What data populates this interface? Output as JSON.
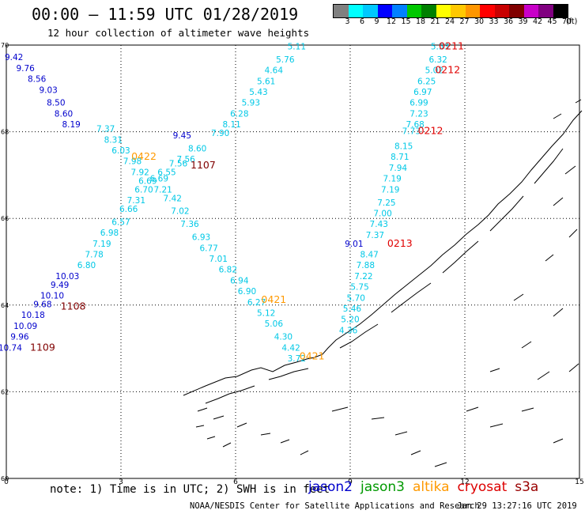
{
  "header": {
    "title": "00:00 – 11:59 UTC 01/28/2019",
    "subtitle": "12 hour collection of altimeter wave heights"
  },
  "colorbar": {
    "colors": [
      "#808080",
      "#00ffff",
      "#00c8ff",
      "#0000ff",
      "#0080ff",
      "#00c800",
      "#008000",
      "#ffff00",
      "#ffc800",
      "#ff9600",
      "#ff0000",
      "#c80000",
      "#800000",
      "#c800c8",
      "#800080",
      "#000000"
    ],
    "labels": [
      "3",
      "6",
      "9",
      "12",
      "15",
      "18",
      "21",
      "24",
      "27",
      "30",
      "33",
      "36",
      "39",
      "42",
      "45",
      "70"
    ],
    "unit": "(ft)"
  },
  "map": {
    "x_ticks": [
      "0",
      "3",
      "6",
      "9",
      "12",
      "15"
    ],
    "y_ticks": [
      "60",
      "62",
      "64",
      "66",
      "68",
      "70"
    ],
    "lon_range": [
      0,
      15
    ],
    "lat_range": [
      60,
      70
    ]
  },
  "tracks": [
    {
      "name": "cyan-sw-track",
      "color": "#00c8e6",
      "points": [
        {
          "lon": 7.6,
          "lat": 69.9,
          "v": "5.11"
        },
        {
          "lon": 7.3,
          "lat": 69.6,
          "v": "5.76"
        },
        {
          "lon": 7.0,
          "lat": 69.35,
          "v": "4.64"
        },
        {
          "lon": 6.8,
          "lat": 69.1,
          "v": "5.61"
        },
        {
          "lon": 6.6,
          "lat": 68.85,
          "v": "5.43"
        },
        {
          "lon": 6.4,
          "lat": 68.6,
          "v": "5.93"
        },
        {
          "lon": 6.1,
          "lat": 68.35,
          "v": "6.28"
        },
        {
          "lon": 5.9,
          "lat": 68.1,
          "v": "8.11"
        },
        {
          "lon": 5.6,
          "lat": 67.9,
          "v": "7.90"
        },
        {
          "lon": 5.0,
          "lat": 67.55,
          "v": "8.60"
        },
        {
          "lon": 4.7,
          "lat": 67.3,
          "v": "7.56"
        },
        {
          "lon": 4.5,
          "lat": 67.2,
          "v": "7.56"
        },
        {
          "lon": 4.2,
          "lat": 67.0,
          "v": "6.55"
        },
        {
          "lon": 4.0,
          "lat": 66.85,
          "v": "6.69"
        },
        {
          "lon": 4.1,
          "lat": 66.6,
          "v": "7.21"
        },
        {
          "lon": 4.35,
          "lat": 66.4,
          "v": "7.42"
        },
        {
          "lon": 4.55,
          "lat": 66.1,
          "v": "7.02"
        },
        {
          "lon": 4.8,
          "lat": 65.8,
          "v": "7.36"
        },
        {
          "lon": 5.1,
          "lat": 65.5,
          "v": "6.93"
        },
        {
          "lon": 5.3,
          "lat": 65.25,
          "v": "6.77"
        },
        {
          "lon": 5.55,
          "lat": 65.0,
          "v": "7.01"
        },
        {
          "lon": 5.8,
          "lat": 64.75,
          "v": "6.82"
        },
        {
          "lon": 6.1,
          "lat": 64.5,
          "v": "6.94"
        },
        {
          "lon": 6.3,
          "lat": 64.25,
          "v": "6.90"
        },
        {
          "lon": 6.55,
          "lat": 64.0,
          "v": "6.27"
        },
        {
          "lon": 6.8,
          "lat": 63.75,
          "v": "5.12"
        },
        {
          "lon": 7.0,
          "lat": 63.5,
          "v": "5.06"
        },
        {
          "lon": 7.25,
          "lat": 63.2,
          "v": "4.30"
        },
        {
          "lon": 7.45,
          "lat": 62.95,
          "v": "4.42"
        },
        {
          "lon": 7.6,
          "lat": 62.7,
          "v": "3.72"
        }
      ]
    },
    {
      "name": "cyan-nw-track",
      "color": "#00c8e6",
      "points": [
        {
          "lon": 2.6,
          "lat": 68.0,
          "v": "7.37"
        },
        {
          "lon": 2.8,
          "lat": 67.75,
          "v": "8.31"
        },
        {
          "lon": 3.0,
          "lat": 67.5,
          "v": "6.03"
        },
        {
          "lon": 3.3,
          "lat": 67.25,
          "v": "7.98"
        },
        {
          "lon": 3.5,
          "lat": 67.0,
          "v": "7.92"
        },
        {
          "lon": 3.7,
          "lat": 66.8,
          "v": "6.69"
        },
        {
          "lon": 3.6,
          "lat": 66.6,
          "v": "6.70"
        },
        {
          "lon": 3.4,
          "lat": 66.35,
          "v": "7.31"
        },
        {
          "lon": 3.2,
          "lat": 66.15,
          "v": "6.66"
        },
        {
          "lon": 3.0,
          "lat": 65.85,
          "v": "6.57"
        },
        {
          "lon": 2.7,
          "lat": 65.6,
          "v": "6.98"
        },
        {
          "lon": 2.5,
          "lat": 65.35,
          "v": "7.19"
        },
        {
          "lon": 2.3,
          "lat": 65.1,
          "v": "7.78"
        },
        {
          "lon": 2.1,
          "lat": 64.85,
          "v": "6.80"
        }
      ]
    },
    {
      "name": "cyan-e-track",
      "color": "#00c8e6",
      "points": [
        {
          "lon": 11.35,
          "lat": 69.9,
          "v": "5.53"
        },
        {
          "lon": 11.3,
          "lat": 69.6,
          "v": "6.32"
        },
        {
          "lon": 11.2,
          "lat": 69.35,
          "v": "5.02"
        },
        {
          "lon": 11.0,
          "lat": 69.1,
          "v": "6.25"
        },
        {
          "lon": 10.9,
          "lat": 68.85,
          "v": "6.97"
        },
        {
          "lon": 10.8,
          "lat": 68.6,
          "v": "6.99"
        },
        {
          "lon": 10.8,
          "lat": 68.35,
          "v": "7.23"
        },
        {
          "lon": 10.7,
          "lat": 68.1,
          "v": "7.68"
        },
        {
          "lon": 10.6,
          "lat": 67.95,
          "v": "7.73"
        },
        {
          "lon": 10.4,
          "lat": 67.6,
          "v": "8.15"
        },
        {
          "lon": 10.3,
          "lat": 67.35,
          "v": "8.71"
        },
        {
          "lon": 10.25,
          "lat": 67.1,
          "v": "7.94"
        },
        {
          "lon": 10.1,
          "lat": 66.85,
          "v": "7.19"
        },
        {
          "lon": 10.05,
          "lat": 66.6,
          "v": "7.19"
        },
        {
          "lon": 9.95,
          "lat": 66.3,
          "v": "7.25"
        },
        {
          "lon": 9.85,
          "lat": 66.05,
          "v": "7.00"
        },
        {
          "lon": 9.75,
          "lat": 65.8,
          "v": "7.43"
        },
        {
          "lon": 9.65,
          "lat": 65.55,
          "v": "7.37"
        },
        {
          "lon": 9.5,
          "lat": 65.1,
          "v": "8.47"
        },
        {
          "lon": 9.4,
          "lat": 64.85,
          "v": "7.88"
        },
        {
          "lon": 9.35,
          "lat": 64.6,
          "v": "7.22"
        },
        {
          "lon": 9.25,
          "lat": 64.35,
          "v": "5.75"
        },
        {
          "lon": 9.15,
          "lat": 64.1,
          "v": "5.70"
        },
        {
          "lon": 9.05,
          "lat": 63.85,
          "v": "5.46"
        },
        {
          "lon": 9.0,
          "lat": 63.6,
          "v": "5.20"
        },
        {
          "lon": 8.95,
          "lat": 63.35,
          "v": "4.36"
        }
      ]
    },
    {
      "name": "blue-track",
      "color": "#0000cc",
      "points": [
        {
          "lon": 0.2,
          "lat": 69.65,
          "v": "9.42"
        },
        {
          "lon": 0.5,
          "lat": 69.4,
          "v": "9.76"
        },
        {
          "lon": 0.8,
          "lat": 69.15,
          "v": "8.56"
        },
        {
          "lon": 1.1,
          "lat": 68.9,
          "v": "9.03"
        },
        {
          "lon": 1.3,
          "lat": 68.6,
          "v": "8.50"
        },
        {
          "lon": 1.5,
          "lat": 68.35,
          "v": "8.60"
        },
        {
          "lon": 1.7,
          "lat": 68.1,
          "v": "8.19"
        },
        {
          "lon": 4.6,
          "lat": 67.85,
          "v": "9.45"
        },
        {
          "lon": 9.1,
          "lat": 65.35,
          "v": "9.01"
        },
        {
          "lon": 1.6,
          "lat": 64.6,
          "v": "10.03"
        },
        {
          "lon": 1.4,
          "lat": 64.4,
          "v": "9.49"
        },
        {
          "lon": 1.2,
          "lat": 64.15,
          "v": "10.10"
        },
        {
          "lon": 0.95,
          "lat": 63.95,
          "v": "9.68"
        },
        {
          "lon": 0.7,
          "lat": 63.7,
          "v": "10.18"
        },
        {
          "lon": 0.5,
          "lat": 63.45,
          "v": "10.09"
        },
        {
          "lon": 0.35,
          "lat": 63.2,
          "v": "9.96"
        },
        {
          "lon": 0.1,
          "lat": 62.95,
          "v": "10.74"
        }
      ]
    }
  ],
  "times": [
    {
      "lon": 11.65,
      "lat": 69.9,
      "t": "0211",
      "color": "#e00000"
    },
    {
      "lon": 11.55,
      "lat": 69.35,
      "t": "0212",
      "color": "#e00000"
    },
    {
      "lon": 11.1,
      "lat": 67.95,
      "t": "0212",
      "color": "#e00000"
    },
    {
      "lon": 10.3,
      "lat": 65.35,
      "t": "0213",
      "color": "#e00000"
    },
    {
      "lon": 3.6,
      "lat": 67.35,
      "t": "0422",
      "color": "#ff9900"
    },
    {
      "lon": 5.15,
      "lat": 67.15,
      "t": "1107",
      "color": "#800000"
    },
    {
      "lon": 7.0,
      "lat": 64.05,
      "t": "0421",
      "color": "#ff9900"
    },
    {
      "lon": 8.0,
      "lat": 62.75,
      "t": "0421",
      "color": "#ff9900"
    },
    {
      "lon": 1.75,
      "lat": 63.9,
      "t": "1108",
      "color": "#800000"
    },
    {
      "lon": 0.95,
      "lat": 62.95,
      "t": "1109",
      "color": "#800000"
    }
  ],
  "footer": {
    "note": "note: 1) Time is in UTC; 2) SWH is in feet",
    "legend": [
      {
        "label": "jason2",
        "color": "#0000cc"
      },
      {
        "label": "jason3",
        "color": "#009900"
      },
      {
        "label": "altika",
        "color": "#ff9900"
      },
      {
        "label": "cryosat",
        "color": "#dd0000"
      },
      {
        "label": "s3a",
        "color": "#990000"
      }
    ],
    "credit": "NOAA/NESDIS Center for Satellite Applications and Research",
    "timestamp": "Jan 29 13:27:16 UTC 2019"
  }
}
